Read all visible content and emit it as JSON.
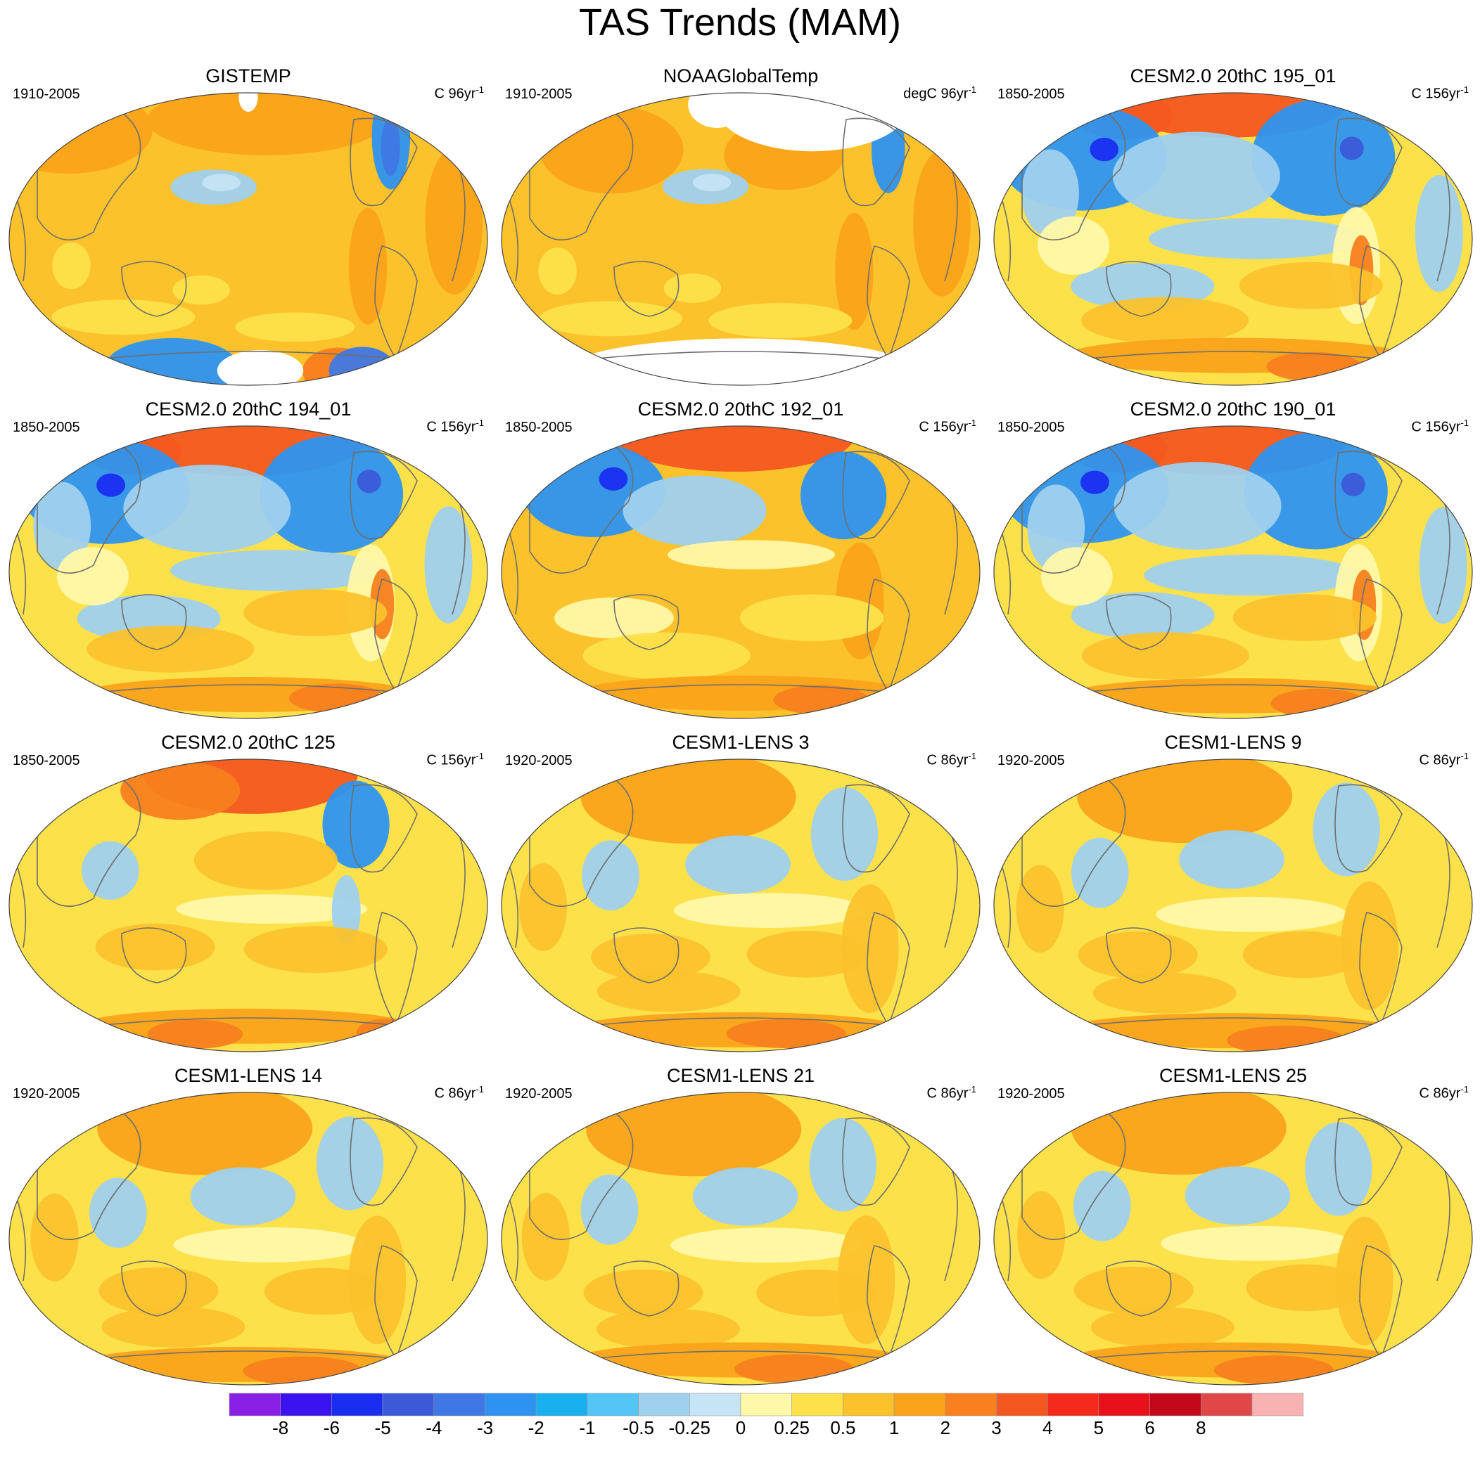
{
  "figure": {
    "title": "TAS Trends (MAM)"
  },
  "chart_data": {
    "type": "heatmap",
    "projection": "Robinson-like global map, Pacific-centered, with coastlines",
    "colorbar": {
      "levels": [
        "-8",
        "-6",
        "-5",
        "-4",
        "-3",
        "-2",
        "-1",
        "-0.5",
        "-0.25",
        "0",
        "0.25",
        "0.5",
        "1",
        "2",
        "3",
        "4",
        "5",
        "6",
        "8"
      ],
      "colors": [
        "#8a1fe6",
        "#3b12f0",
        "#1a2ef2",
        "#3c5ad8",
        "#3f78e4",
        "#2e93f0",
        "#18b0ef",
        "#55c5f5",
        "#9fd0ee",
        "#c5e4f6",
        "#fff8a8",
        "#fde14a",
        "#fcc22c",
        "#fba31a",
        "#f8801e",
        "#f45820",
        "#f42a1c",
        "#e8101a",
        "#c2081a",
        "#e04848",
        "#f9b2b2"
      ]
    },
    "panels": [
      {
        "title": "GISTEMP",
        "period": "1910-2005",
        "units": "C 96yr",
        "units_sup": "-1",
        "style": "obs_gistemp"
      },
      {
        "title": "NOAAGlobalTemp",
        "period": "1910-2005",
        "units": "degC 96yr",
        "units_sup": "-1",
        "style": "obs_noaa"
      },
      {
        "title": "CESM2.0 20thC 195_01",
        "period": "1850-2005",
        "units": "C 156yr",
        "units_sup": "-1",
        "style": "cesm2_cool"
      },
      {
        "title": "CESM2.0 20thC 194_01",
        "period": "1850-2005",
        "units": "C 156yr",
        "units_sup": "-1",
        "style": "cesm2_cool"
      },
      {
        "title": "CESM2.0 20thC 192_01",
        "period": "1850-2005",
        "units": "C 156yr",
        "units_sup": "-1",
        "style": "cesm2_mixed"
      },
      {
        "title": "CESM2.0 20thC 190_01",
        "period": "1850-2005",
        "units": "C 156yr",
        "units_sup": "-1",
        "style": "cesm2_cool"
      },
      {
        "title": "CESM2.0 20thC 125",
        "period": "1850-2005",
        "units": "C 156yr",
        "units_sup": "-1",
        "style": "cesm2_warm"
      },
      {
        "title": "CESM1-LENS 3",
        "period": "1920-2005",
        "units": "C 86yr",
        "units_sup": "-1",
        "style": "lens"
      },
      {
        "title": "CESM1-LENS 9",
        "period": "1920-2005",
        "units": "C 86yr",
        "units_sup": "-1",
        "style": "lens"
      },
      {
        "title": "CESM1-LENS 14",
        "period": "1920-2005",
        "units": "C 86yr",
        "units_sup": "-1",
        "style": "lens"
      },
      {
        "title": "CESM1-LENS 21",
        "period": "1920-2005",
        "units": "C 86yr",
        "units_sup": "-1",
        "style": "lens"
      },
      {
        "title": "CESM1-LENS 25",
        "period": "1920-2005",
        "units": "C 86yr",
        "units_sup": "-1",
        "style": "lens"
      }
    ]
  }
}
